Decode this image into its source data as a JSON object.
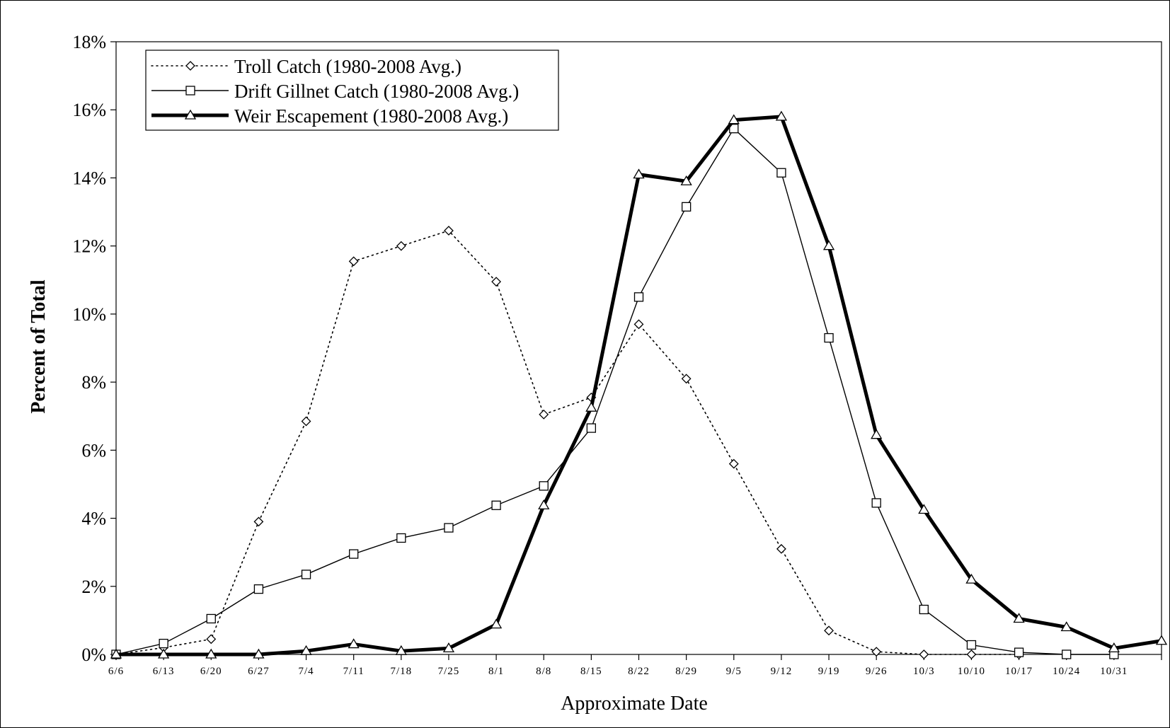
{
  "chart_data": {
    "type": "line",
    "xlabel": "Approximate Date",
    "ylabel": "Percent of Total",
    "ylim": [
      0,
      18
    ],
    "y_ticks": [
      "0%",
      "2%",
      "4%",
      "6%",
      "8%",
      "10%",
      "12%",
      "14%",
      "16%",
      "18%"
    ],
    "grid": false,
    "legend_position": "top-left",
    "categories": [
      "6/6",
      "6/13",
      "6/20",
      "6/27",
      "7/4",
      "7/11",
      "7/18",
      "7/25",
      "8/1",
      "8/8",
      "8/15",
      "8/22",
      "8/29",
      "9/5",
      "9/12",
      "9/19",
      "9/26",
      "10/3",
      "10/10",
      "10/17",
      "10/24",
      "10/31",
      ""
    ],
    "series": [
      {
        "name": "Troll Catch (1980-2008 Avg.)",
        "style": "dotted-diamond",
        "values": [
          0.0,
          0.2,
          0.45,
          3.9,
          6.85,
          11.55,
          12.0,
          12.45,
          10.95,
          7.05,
          7.55,
          9.7,
          8.1,
          5.6,
          3.1,
          0.7,
          0.08,
          0.0,
          0.0,
          0.0,
          null,
          null,
          null
        ]
      },
      {
        "name": "Drift Gillnet Catch (1980-2008 Avg.)",
        "style": "thin-square",
        "values": [
          0.0,
          0.32,
          1.05,
          1.92,
          2.35,
          2.95,
          3.42,
          3.72,
          4.38,
          4.95,
          6.65,
          10.5,
          13.15,
          15.45,
          14.15,
          9.3,
          4.45,
          1.32,
          0.28,
          0.06,
          0.0,
          0.0,
          null
        ]
      },
      {
        "name": "Weir Escapement (1980-2008 Avg.)",
        "style": "thick-triangle",
        "values": [
          0.0,
          0.0,
          0.0,
          0.0,
          0.1,
          0.3,
          0.1,
          0.18,
          0.88,
          4.38,
          7.25,
          14.1,
          13.9,
          15.7,
          15.8,
          12.0,
          6.45,
          4.25,
          2.2,
          1.05,
          0.8,
          0.18,
          0.4
        ]
      }
    ],
    "colors": {
      "line": "#000000",
      "background": "#ffffff"
    }
  }
}
